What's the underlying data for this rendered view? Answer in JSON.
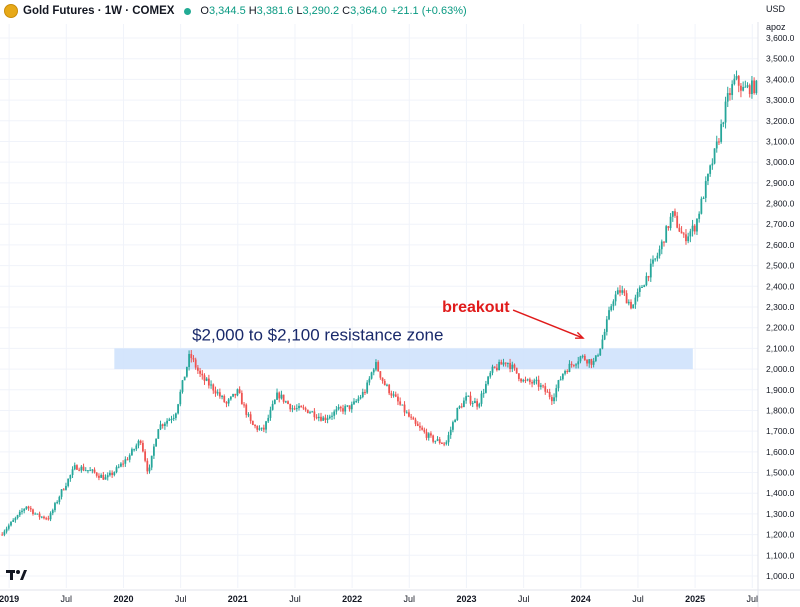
{
  "header": {
    "title": "Gold Futures · 1W · COMEX",
    "open_label": "O",
    "open": "3,344.5",
    "high_label": "H",
    "high": "3,381.6",
    "low_label": "L",
    "low": "3,290.2",
    "close_label": "C",
    "close": "3,364.0",
    "change": "+21.1 (+0.63%)",
    "currency": "USD",
    "scale_mode": "apoz"
  },
  "colors": {
    "up": "#26a69a",
    "down": "#ef5350",
    "zone_fill": "#cfe2fc",
    "zone_text": "#1a2a6b",
    "annotation": "#e01b1b",
    "grid": "#f0f3fa",
    "axis_text": "#131722"
  },
  "chart_data": {
    "type": "candlestick",
    "title": "Gold Futures · 1W · COMEX",
    "x_ticks": [
      {
        "label": "2019",
        "t": 2019.0,
        "bold": true
      },
      {
        "label": "Jul",
        "t": 2019.5
      },
      {
        "label": "2020",
        "t": 2020.0,
        "bold": true
      },
      {
        "label": "Jul",
        "t": 2020.5
      },
      {
        "label": "2021",
        "t": 2021.0,
        "bold": true
      },
      {
        "label": "Jul",
        "t": 2021.5
      },
      {
        "label": "2022",
        "t": 2022.0,
        "bold": true
      },
      {
        "label": "Jul",
        "t": 2022.5
      },
      {
        "label": "2023",
        "t": 2023.0,
        "bold": true
      },
      {
        "label": "Jul",
        "t": 2023.5
      },
      {
        "label": "2024",
        "t": 2024.0,
        "bold": true
      },
      {
        "label": "Jul",
        "t": 2024.5
      },
      {
        "label": "2025",
        "t": 2025.0,
        "bold": true
      },
      {
        "label": "Jul",
        "t": 2025.5
      }
    ],
    "y_ticks": [
      "1,000.0",
      "1,100.0",
      "1,200.0",
      "1,300.0",
      "1,400.0",
      "1,500.0",
      "1,600.0",
      "1,700.0",
      "1,800.0",
      "1,900.0",
      "2,000.0",
      "2,100.0",
      "2,200.0",
      "2,300.0",
      "2,400.0",
      "2,500.0",
      "2,600.0",
      "2,700.0",
      "2,800.0",
      "2,900.0",
      "3,000.0",
      "3,100.0",
      "3,200.0",
      "3,300.0",
      "3,400.0",
      "3,500.0",
      "3,600.0"
    ],
    "ylim": [
      1000,
      3600
    ],
    "xlim": [
      2018.92,
      2025.55
    ],
    "price_path": [
      [
        2018.92,
        1200
      ],
      [
        2019.08,
        1290
      ],
      [
        2019.15,
        1340
      ],
      [
        2019.25,
        1290
      ],
      [
        2019.35,
        1280
      ],
      [
        2019.45,
        1400
      ],
      [
        2019.58,
        1530
      ],
      [
        2019.7,
        1510
      ],
      [
        2019.85,
        1470
      ],
      [
        2019.95,
        1520
      ],
      [
        2020.05,
        1580
      ],
      [
        2020.15,
        1660
      ],
      [
        2020.22,
        1490
      ],
      [
        2020.3,
        1720
      ],
      [
        2020.45,
        1780
      ],
      [
        2020.58,
        2070
      ],
      [
        2020.68,
        1960
      ],
      [
        2020.8,
        1900
      ],
      [
        2020.9,
        1830
      ],
      [
        2021.0,
        1890
      ],
      [
        2021.12,
        1730
      ],
      [
        2021.22,
        1700
      ],
      [
        2021.35,
        1880
      ],
      [
        2021.48,
        1810
      ],
      [
        2021.62,
        1800
      ],
      [
        2021.75,
        1760
      ],
      [
        2021.88,
        1800
      ],
      [
        2022.0,
        1820
      ],
      [
        2022.12,
        1900
      ],
      [
        2022.2,
        2030
      ],
      [
        2022.28,
        1930
      ],
      [
        2022.4,
        1840
      ],
      [
        2022.55,
        1730
      ],
      [
        2022.7,
        1660
      ],
      [
        2022.82,
        1640
      ],
      [
        2022.92,
        1800
      ],
      [
        2023.0,
        1860
      ],
      [
        2023.1,
        1830
      ],
      [
        2023.22,
        1990
      ],
      [
        2023.35,
        2040
      ],
      [
        2023.5,
        1940
      ],
      [
        2023.62,
        1930
      ],
      [
        2023.75,
        1860
      ],
      [
        2023.85,
        1990
      ],
      [
        2024.0,
        2060
      ],
      [
        2024.12,
        2030
      ],
      [
        2024.2,
        2160
      ],
      [
        2024.28,
        2340
      ],
      [
        2024.35,
        2380
      ],
      [
        2024.45,
        2300
      ],
      [
        2024.55,
        2420
      ],
      [
        2024.68,
        2560
      ],
      [
        2024.8,
        2750
      ],
      [
        2024.9,
        2630
      ],
      [
        2025.0,
        2690
      ],
      [
        2025.1,
        2900
      ],
      [
        2025.2,
        3100
      ],
      [
        2025.28,
        3300
      ],
      [
        2025.35,
        3400
      ],
      [
        2025.42,
        3350
      ],
      [
        2025.5,
        3364
      ]
    ],
    "annotations": [
      {
        "text": "$2,000 to $2,100 resistance zone",
        "kind": "zone",
        "x_from": 2019.92,
        "x_to": 2024.98,
        "y_from": 2000,
        "y_to": 2100
      },
      {
        "text": "breakout",
        "kind": "arrow",
        "arrow_tip_t": 2024.02,
        "arrow_tip_y": 2150
      }
    ]
  }
}
